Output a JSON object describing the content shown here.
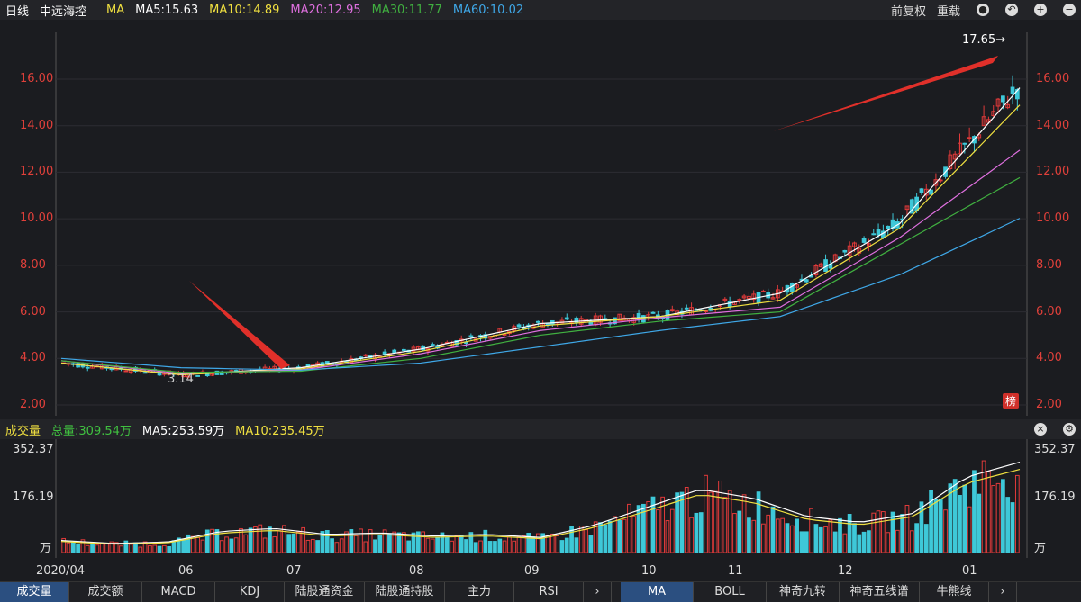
{
  "header": {
    "period": "日线",
    "stock": "中远海控",
    "ma_label": "MA",
    "ma5": "MA5:15.63",
    "ma10": "MA10:14.89",
    "ma20": "MA20:12.95",
    "ma30": "MA30:11.77",
    "ma60": "MA60:10.02",
    "fuquan": "前复权",
    "reload": "重载"
  },
  "colors": {
    "ma5": "#ffffff",
    "ma10": "#f0e040",
    "ma20": "#e070e0",
    "ma30": "#40b040",
    "ma60": "#3fa8e8",
    "up": "#e03a3a",
    "down": "#3ec8d8"
  },
  "price_axis": {
    "ticks": [
      "16.00",
      "14.00",
      "12.00",
      "10.00",
      "8.00",
      "6.00",
      "4.00",
      "2.00"
    ]
  },
  "annotations": {
    "high": "17.65→",
    "low": "3.14",
    "badge": "榜"
  },
  "volume": {
    "title": "成交量",
    "total": "总量:309.54万",
    "ma5": "MA5:253.59万",
    "ma10": "MA10:235.45万",
    "ticks": [
      "352.37",
      "176.19",
      "万"
    ]
  },
  "x_axis": [
    "2020/04",
    "06",
    "07",
    "08",
    "09",
    "10",
    "11",
    "12",
    "01"
  ],
  "tabs_left": [
    "成交量",
    "成交额",
    "MACD",
    "KDJ",
    "陆股通资金",
    "陆股通持股",
    "主力",
    "RSI"
  ],
  "tabs_right": [
    "MA",
    "BOLL",
    "神奇九转",
    "神奇五线谱",
    "牛熊线"
  ],
  "chart_data": {
    "type": "line",
    "title": "",
    "xlabel": "",
    "ylabel": "",
    "ylim": [
      2.0,
      17.65
    ],
    "x": [
      "2020/04",
      "06",
      "07",
      "08",
      "09",
      "10",
      "11",
      "12",
      "01"
    ],
    "series": [
      {
        "name": "MA5",
        "values": [
          3.8,
          3.3,
          3.6,
          4.4,
          5.5,
          5.8,
          6.8,
          9.8,
          15.63
        ]
      },
      {
        "name": "MA10",
        "values": [
          3.8,
          3.3,
          3.55,
          4.3,
          5.4,
          5.8,
          6.5,
          9.6,
          14.89
        ]
      },
      {
        "name": "MA20",
        "values": [
          3.9,
          3.35,
          3.5,
          4.2,
          5.2,
          5.75,
          6.2,
          9.2,
          12.95
        ]
      },
      {
        "name": "MA30",
        "values": [
          3.9,
          3.4,
          3.45,
          4.0,
          5.0,
          5.6,
          6.0,
          8.9,
          11.77
        ]
      },
      {
        "name": "MA60",
        "values": [
          4.0,
          3.6,
          3.5,
          3.8,
          4.5,
          5.2,
          5.8,
          7.6,
          10.02
        ]
      }
    ],
    "volume_ylim": [
      0,
      352.37
    ]
  }
}
